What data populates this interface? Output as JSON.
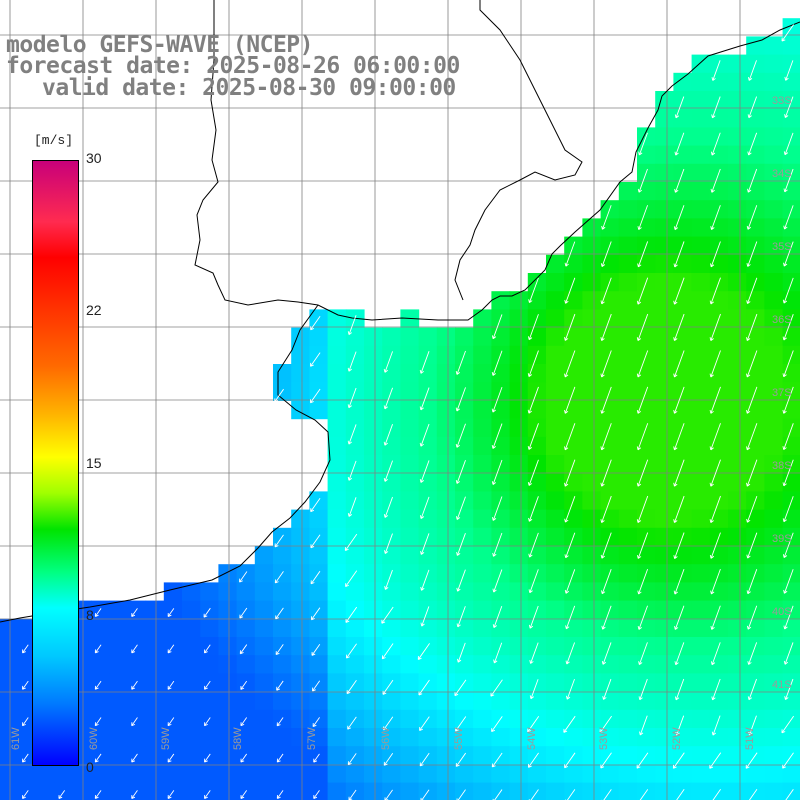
{
  "title": {
    "line1": "modelo GEFS-WAVE (NCEP)",
    "line2": "forecast date: 2025-08-26 06:00:00",
    "line3": "valid date: 2025-08-30 09:00:00"
  },
  "colorbar": {
    "unit": "[m/s]",
    "ticks": [
      "30",
      "22",
      "15",
      "8",
      "0"
    ],
    "min": 0,
    "max": 30,
    "colors": [
      "#c8007a",
      "#ff0000",
      "#ff8c00",
      "#ffff00",
      "#00e400",
      "#00ffff",
      "#0078ff",
      "#0000ff"
    ]
  },
  "lat_labels": [
    "33S",
    "34S",
    "35S",
    "36S",
    "37S",
    "38S",
    "39S",
    "40S",
    "41S"
  ],
  "lon_labels": [
    "61W",
    "60W",
    "59W",
    "58W",
    "57W",
    "56W",
    "55W",
    "54W",
    "53W",
    "52W",
    "51W"
  ],
  "map": {
    "land_color": "#ffffff",
    "grid_color": "#808080",
    "coast_color": "#000000",
    "arrow_color": "#ffffff",
    "field": "wind speed"
  }
}
